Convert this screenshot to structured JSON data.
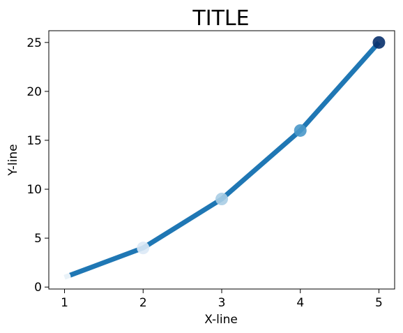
{
  "chart_data": {
    "type": "line",
    "title": "TITLE",
    "xlabel": "X-line",
    "ylabel": "Y-line",
    "x": [
      1,
      2,
      3,
      4,
      5
    ],
    "series": [
      {
        "values": [
          1,
          4,
          9,
          16,
          25
        ],
        "color": "#1f77b4"
      }
    ],
    "markers": {
      "x": [
        1,
        2,
        3,
        4,
        5
      ],
      "y": [
        1,
        4,
        9,
        16,
        25
      ],
      "colors": [
        "#ffffff",
        "#dbe9f6",
        "#a8cde4",
        "#4a98c9",
        "#08306b"
      ]
    },
    "xticks": [
      1,
      2,
      3,
      4,
      5
    ],
    "yticks": [
      0,
      5,
      10,
      15,
      20,
      25
    ],
    "xlim": [
      0.8,
      5.2
    ],
    "ylim": [
      -0.2,
      26.2
    ],
    "grid": false
  }
}
